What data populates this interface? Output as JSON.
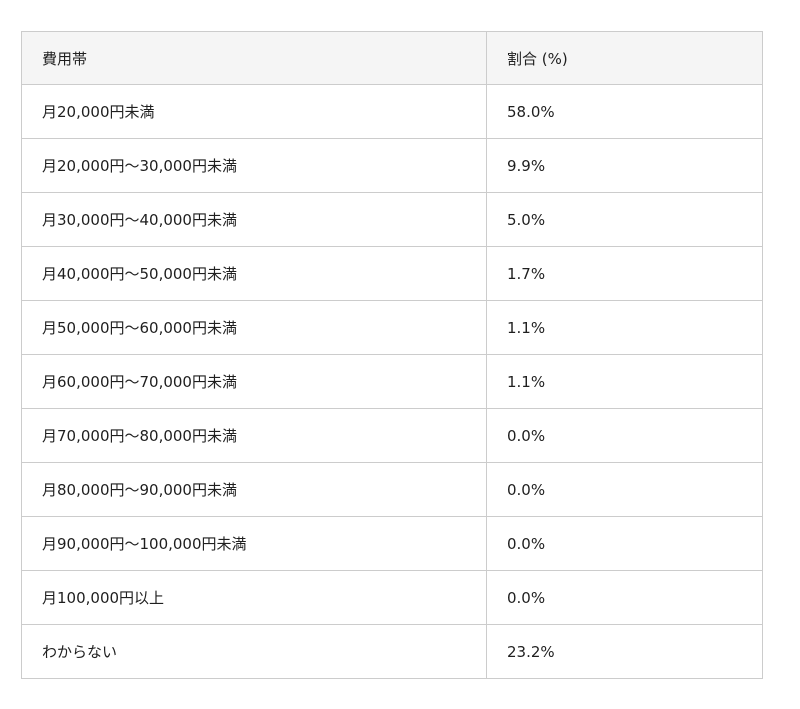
{
  "colors": {
    "page_background": "#ffffff",
    "header_background": "#f5f5f5",
    "border": "#cccccc",
    "text": "#1f1f1f"
  },
  "table": {
    "columns": [
      "費用帯",
      "割合 (%)"
    ],
    "rows": [
      {
        "band": "月20,000円未満",
        "percentage": "58.0%"
      },
      {
        "band": "月20,000円〜30,000円未満",
        "percentage": "9.9%"
      },
      {
        "band": "月30,000円〜40,000円未満",
        "percentage": "5.0%"
      },
      {
        "band": "月40,000円〜50,000円未満",
        "percentage": "1.7%"
      },
      {
        "band": "月50,000円〜60,000円未満",
        "percentage": "1.1%"
      },
      {
        "band": "月60,000円〜70,000円未満",
        "percentage": "1.1%"
      },
      {
        "band": "月70,000円〜80,000円未満",
        "percentage": "0.0%"
      },
      {
        "band": "月80,000円〜90,000円未満",
        "percentage": "0.0%"
      },
      {
        "band": "月90,000円〜100,000円未満",
        "percentage": "0.0%"
      },
      {
        "band": "月100,000円以上",
        "percentage": "0.0%"
      },
      {
        "band": "わからない",
        "percentage": "23.2%"
      }
    ]
  },
  "chart_data": {
    "type": "table",
    "title": "",
    "columns": [
      "費用帯",
      "割合 (%)"
    ],
    "categories": [
      "月20,000円未満",
      "月20,000円〜30,000円未満",
      "月30,000円〜40,000円未満",
      "月40,000円〜50,000円未満",
      "月50,000円〜60,000円未満",
      "月60,000円〜70,000円未満",
      "月70,000円〜80,000円未満",
      "月80,000円〜90,000円未満",
      "月90,000円〜100,000円未満",
      "月100,000円以上",
      "わからない"
    ],
    "values": [
      58.0,
      9.9,
      5.0,
      1.7,
      1.1,
      1.1,
      0.0,
      0.0,
      0.0,
      0.0,
      23.2
    ],
    "value_unit": "%"
  }
}
